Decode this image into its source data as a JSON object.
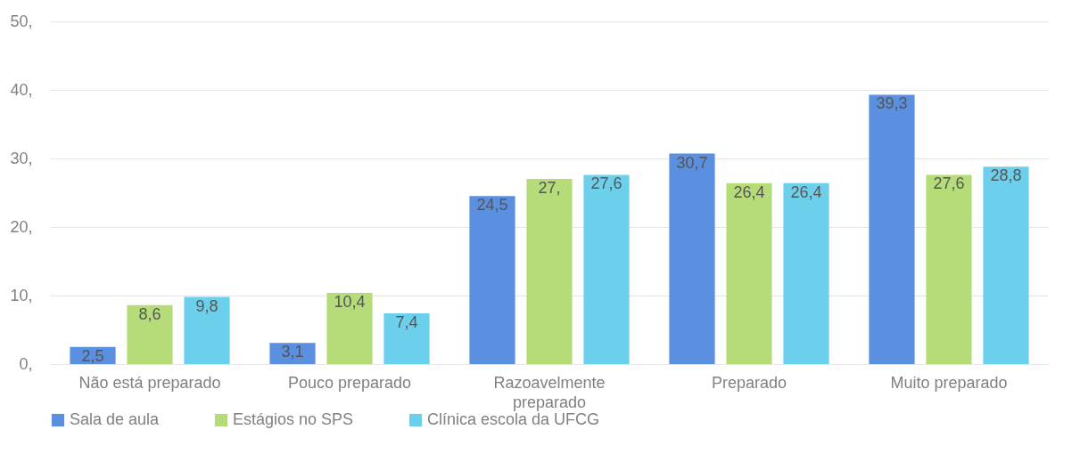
{
  "chart_data": {
    "type": "bar",
    "categories": [
      "Não está preparado",
      "Pouco preparado",
      "Razoavelmente preparado",
      "Preparado",
      "Muito preparado"
    ],
    "series": [
      {
        "name": "Sala de aula",
        "color": "#5b8fe0",
        "values": [
          2.5,
          3.1,
          24.5,
          30.7,
          39.3
        ],
        "value_labels": [
          "2,5",
          "3,1",
          "24,5",
          "30,7",
          "39,3"
        ]
      },
      {
        "name": "Estágios no SPS",
        "color": "#b5dc78",
        "values": [
          8.6,
          10.4,
          27,
          26.4,
          27.6
        ],
        "value_labels": [
          "8,6",
          "10,4",
          "27,",
          "26,4",
          "27,6"
        ]
      },
      {
        "name": "Clínica escola da UFCG",
        "color": "#6cd0ec",
        "values": [
          9.8,
          7.4,
          27.6,
          26.4,
          28.8
        ],
        "value_labels": [
          "9,8",
          "7,4",
          "27,6",
          "26,4",
          "28,8"
        ]
      }
    ],
    "ylim": [
      0,
      50
    ],
    "yticks": [
      {
        "value": 0,
        "label": "0,"
      },
      {
        "value": 10,
        "label": "10,"
      },
      {
        "value": 20,
        "label": "20,"
      },
      {
        "value": 30,
        "label": "30,"
      },
      {
        "value": 40,
        "label": "40,"
      },
      {
        "value": 50,
        "label": "50,"
      }
    ],
    "grid": "y",
    "legend": "bottom"
  }
}
